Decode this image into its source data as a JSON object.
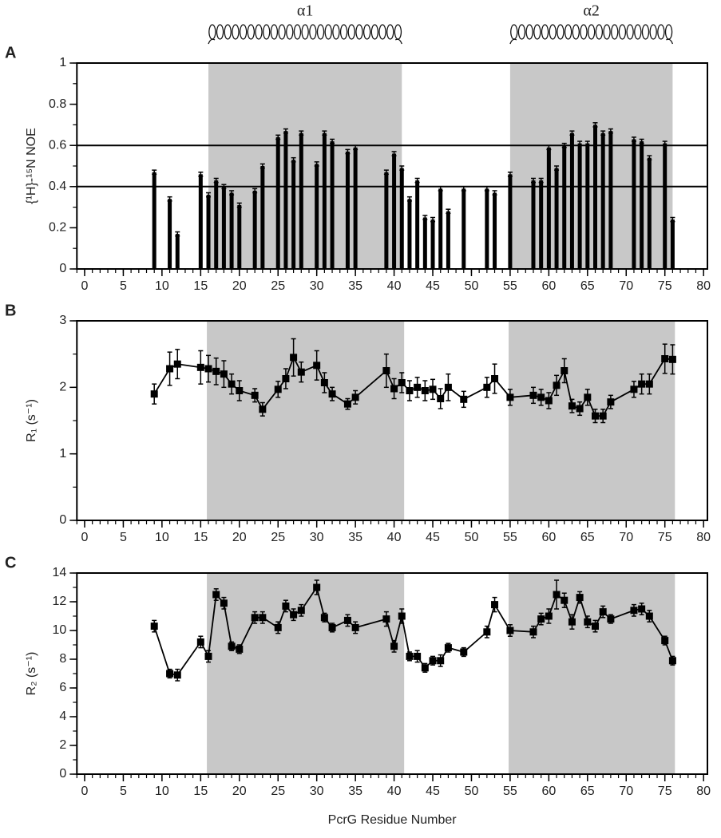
{
  "chart_data": [
    {
      "type": "bar",
      "panel": "A",
      "ylabel": "{¹H}-¹⁵N NOE",
      "color": "#000000",
      "region_color": "#c8c8c8",
      "x": [
        9,
        11,
        12,
        15,
        16,
        17,
        18,
        19,
        20,
        22,
        23,
        25,
        26,
        27,
        28,
        30,
        31,
        32,
        34,
        35,
        39,
        40,
        41,
        42,
        43,
        44,
        45,
        46,
        47,
        49,
        52,
        53,
        55,
        58,
        59,
        60,
        61,
        62,
        63,
        64,
        65,
        66,
        67,
        68,
        71,
        72,
        73,
        75,
        76
      ],
      "values": [
        0.47,
        0.34,
        0.17,
        0.46,
        0.36,
        0.43,
        0.4,
        0.37,
        0.31,
        0.38,
        0.5,
        0.64,
        0.67,
        0.53,
        0.66,
        0.51,
        0.66,
        0.62,
        0.57,
        0.59,
        0.47,
        0.56,
        0.49,
        0.34,
        0.43,
        0.25,
        0.24,
        0.39,
        0.28,
        0.39,
        0.39,
        0.37,
        0.46,
        0.43,
        0.43,
        0.59,
        0.49,
        0.6,
        0.66,
        0.61,
        0.61,
        0.7,
        0.66,
        0.67,
        0.63,
        0.62,
        0.54,
        0.61,
        0.24
      ],
      "errors": [
        0.01,
        0.01,
        0.01,
        0.01,
        0.01,
        0.01,
        0.01,
        0.01,
        0.01,
        0.01,
        0.01,
        0.01,
        0.01,
        0.01,
        0.01,
        0.01,
        0.01,
        0.01,
        0.01,
        0.01,
        0.01,
        0.01,
        0.01,
        0.01,
        0.01,
        0.01,
        0.01,
        0.01,
        0.01,
        0.01,
        0.01,
        0.01,
        0.01,
        0.01,
        0.01,
        0.01,
        0.01,
        0.01,
        0.01,
        0.01,
        0.01,
        0.01,
        0.01,
        0.01,
        0.01,
        0.01,
        0.01,
        0.01,
        0.01
      ],
      "hlines": [
        0.4,
        0.6
      ],
      "regions": [
        {
          "start": 16,
          "end": 41,
          "label": "α1"
        },
        {
          "start": 55,
          "end": 76,
          "label": "α2"
        }
      ],
      "xlim": [
        -1,
        80.5
      ],
      "xticks": [
        0,
        5,
        10,
        15,
        20,
        25,
        30,
        35,
        40,
        45,
        50,
        55,
        60,
        65,
        70,
        75,
        80
      ],
      "minor_x": 1,
      "ylim": [
        0,
        1
      ],
      "yticks": [
        0,
        0.2,
        0.4,
        0.6,
        0.8,
        1
      ],
      "minor_y": 0.1
    },
    {
      "type": "line",
      "panel": "B",
      "ylabel": "R₁ (s⁻¹)",
      "color": "#000000",
      "region_color": "#c8c8c8",
      "x": [
        9,
        11,
        12,
        15,
        16,
        17,
        18,
        19,
        20,
        22,
        23,
        25,
        26,
        27,
        28,
        30,
        31,
        32,
        34,
        35,
        39,
        40,
        41,
        42,
        43,
        44,
        45,
        46,
        47,
        49,
        52,
        53,
        55,
        58,
        59,
        60,
        61,
        62,
        63,
        64,
        65,
        66,
        67,
        68,
        71,
        72,
        73,
        75,
        76
      ],
      "values": [
        1.9,
        2.28,
        2.35,
        2.3,
        2.28,
        2.24,
        2.2,
        2.05,
        1.95,
        1.88,
        1.67,
        1.97,
        2.13,
        2.45,
        2.23,
        2.33,
        2.07,
        1.9,
        1.75,
        1.85,
        2.25,
        1.98,
        2.07,
        1.95,
        2.0,
        1.95,
        1.97,
        1.83,
        2.0,
        1.82,
        2.0,
        2.13,
        1.85,
        1.88,
        1.85,
        1.8,
        2.03,
        2.25,
        1.72,
        1.68,
        1.85,
        1.57,
        1.57,
        1.78,
        1.97,
        2.05,
        2.05,
        2.43,
        2.42
      ],
      "errors": [
        0.15,
        0.25,
        0.22,
        0.25,
        0.2,
        0.2,
        0.2,
        0.15,
        0.15,
        0.1,
        0.1,
        0.12,
        0.15,
        0.28,
        0.15,
        0.22,
        0.15,
        0.1,
        0.08,
        0.1,
        0.25,
        0.15,
        0.15,
        0.15,
        0.15,
        0.15,
        0.15,
        0.15,
        0.2,
        0.12,
        0.15,
        0.22,
        0.12,
        0.12,
        0.12,
        0.12,
        0.15,
        0.18,
        0.1,
        0.1,
        0.12,
        0.1,
        0.1,
        0.1,
        0.12,
        0.15,
        0.15,
        0.22,
        0.22
      ],
      "regions": [
        {
          "start": 15.8,
          "end": 41.3
        },
        {
          "start": 54.8,
          "end": 76.3
        }
      ],
      "xlim": [
        -1,
        80.5
      ],
      "xticks": [
        0,
        5,
        10,
        15,
        20,
        25,
        30,
        35,
        40,
        45,
        50,
        55,
        60,
        65,
        70,
        75,
        80
      ],
      "minor_x": 1,
      "ylim": [
        0,
        3
      ],
      "yticks": [
        0,
        1,
        2,
        3
      ],
      "minor_y": 0.5
    },
    {
      "type": "line",
      "panel": "C",
      "ylabel": "R₂ (s⁻¹)",
      "xlabel": "PcrG Residue Number",
      "color": "#000000",
      "region_color": "#c8c8c8",
      "x": [
        9,
        11,
        12,
        15,
        16,
        17,
        18,
        19,
        20,
        22,
        23,
        25,
        26,
        27,
        28,
        30,
        31,
        32,
        34,
        35,
        39,
        40,
        41,
        42,
        43,
        44,
        45,
        46,
        47,
        49,
        52,
        53,
        55,
        58,
        59,
        60,
        61,
        62,
        63,
        64,
        65,
        66,
        67,
        68,
        71,
        72,
        73,
        75,
        76
      ],
      "values": [
        10.3,
        7.0,
        6.9,
        9.2,
        8.2,
        12.5,
        11.9,
        8.9,
        8.7,
        10.9,
        10.9,
        10.2,
        11.7,
        11.1,
        11.4,
        13.0,
        10.9,
        10.2,
        10.7,
        10.2,
        10.8,
        8.9,
        11.0,
        8.2,
        8.2,
        7.4,
        7.9,
        7.9,
        8.8,
        8.5,
        9.9,
        11.8,
        10.0,
        9.9,
        10.8,
        11.0,
        12.5,
        12.1,
        10.6,
        12.3,
        10.6,
        10.3,
        11.3,
        10.8,
        11.4,
        11.5,
        11.0,
        9.3,
        7.9
      ],
      "errors": [
        0.4,
        0.3,
        0.4,
        0.4,
        0.4,
        0.4,
        0.4,
        0.3,
        0.3,
        0.4,
        0.4,
        0.4,
        0.4,
        0.4,
        0.4,
        0.5,
        0.3,
        0.3,
        0.4,
        0.4,
        0.5,
        0.4,
        0.5,
        0.3,
        0.4,
        0.3,
        0.3,
        0.4,
        0.3,
        0.3,
        0.4,
        0.5,
        0.4,
        0.4,
        0.4,
        0.5,
        1.0,
        0.5,
        0.5,
        0.4,
        0.4,
        0.4,
        0.4,
        0.3,
        0.4,
        0.4,
        0.4,
        0.3,
        0.3
      ],
      "regions": [
        {
          "start": 15.8,
          "end": 41.3
        },
        {
          "start": 54.8,
          "end": 76.3
        }
      ],
      "xlim": [
        -1,
        80.5
      ],
      "xticks": [
        0,
        5,
        10,
        15,
        20,
        25,
        30,
        35,
        40,
        45,
        50,
        55,
        60,
        65,
        70,
        75,
        80
      ],
      "minor_x": 1,
      "ylim": [
        0,
        14
      ],
      "yticks": [
        0,
        2,
        4,
        6,
        8,
        10,
        12,
        14
      ],
      "minor_y": 1
    }
  ]
}
